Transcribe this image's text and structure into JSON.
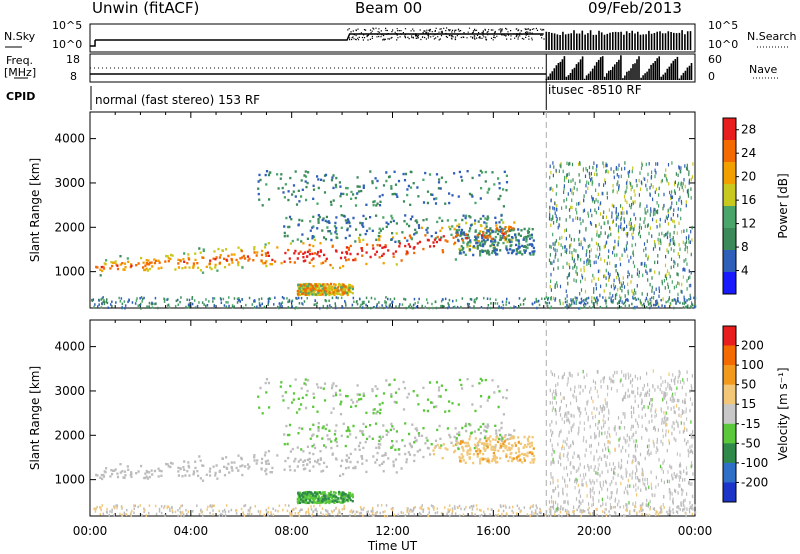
{
  "header": {
    "station": "Unwin (fitACF)",
    "beam": "Beam 00",
    "date": "09/Feb/2013"
  },
  "top_panels": {
    "nsky_label": "N.Sky",
    "nsearch_label": "N.Search",
    "noise_ticks": [
      "10^5",
      "10^0"
    ],
    "freq_label": "Freq.",
    "freq_unit": "[MHz]",
    "freq_ticks": [
      "18",
      "8"
    ],
    "nave_label": "Nave",
    "nave_ticks": [
      "60",
      "0"
    ],
    "cpid_label": "CPID",
    "mode_left": "normal (fast stereo) 153 RF",
    "mode_right": "itusec -8510 RF",
    "mode_switch_time": 18.1
  },
  "chart_data": [
    {
      "type": "heatmap",
      "title": "",
      "xlabel": "",
      "ylabel": "Slant Range [km]",
      "x": [
        "00:00",
        "04:00",
        "08:00",
        "12:00",
        "16:00",
        "20:00",
        "00:00"
      ],
      "xlim": [
        0,
        24
      ],
      "y_ticks": [
        1000,
        2000,
        3000,
        4000
      ],
      "ylim": [
        180,
        4600
      ],
      "colorbar": {
        "label": "Power [dB]",
        "ticks": [
          4,
          8,
          12,
          16,
          20,
          24,
          28
        ],
        "range": [
          0,
          30
        ],
        "colors": [
          "#1a1aff",
          "#2f5fb8",
          "#3c8a5a",
          "#4aa56a",
          "#c8c81e",
          "#f2a000",
          "#f26a00",
          "#e81e1e"
        ]
      }
    },
    {
      "type": "heatmap",
      "title": "",
      "xlabel": "Time UT",
      "ylabel": "Slant Range [km]",
      "x": [
        "00:00",
        "04:00",
        "08:00",
        "12:00",
        "16:00",
        "20:00",
        "00:00"
      ],
      "xlim": [
        0,
        24
      ],
      "y_ticks": [
        1000,
        2000,
        3000,
        4000
      ],
      "ylim": [
        180,
        4600
      ],
      "colorbar": {
        "label": "Velocity [m s⁻¹]",
        "ticks": [
          200,
          100,
          50,
          15,
          -15,
          -50,
          -100,
          -200
        ],
        "range": [
          -250,
          250
        ],
        "colors": [
          "#1c34c8",
          "#2f6fc8",
          "#2f8a4a",
          "#5ac83a",
          "#c8c8c8",
          "#f2c878",
          "#f29a1e",
          "#f26a00",
          "#e81e1e"
        ]
      }
    }
  ]
}
